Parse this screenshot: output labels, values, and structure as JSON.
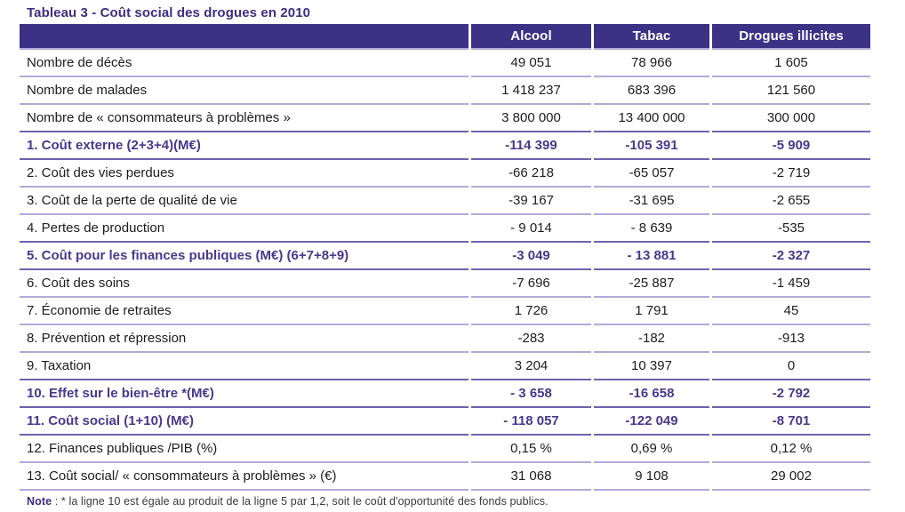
{
  "title": "Tableau 3 - Coût social des drogues en 2010",
  "colors": {
    "header_background": "#3c3184",
    "accent_purple_text": "#463a8e",
    "title_purple": "#3c2f82",
    "separator_light": "#b2aad6",
    "separator_dark": "#6e63ae",
    "body_text": "#1d1d1f",
    "header_text": "#ffffff"
  },
  "table": {
    "columns": [
      "",
      "Alcool",
      "Tabac",
      "Drogues illicites"
    ],
    "rows": [
      {
        "label": "Nombre de décès",
        "values": [
          "49 051",
          "78 966",
          "1 605"
        ],
        "bold": false
      },
      {
        "label": "Nombre de malades",
        "values": [
          "1 418 237",
          "683 396",
          "121 560"
        ],
        "bold": false
      },
      {
        "label": "Nombre de « consommateurs à problèmes »",
        "values": [
          "3 800 000",
          "13 400 000",
          "300 000"
        ],
        "bold": false
      },
      {
        "label": "1. Coût externe (2+3+4)(M€)",
        "values": [
          "-114 399",
          "-105 391",
          "-5 909"
        ],
        "bold": true
      },
      {
        "label": "2. Coût des vies perdues",
        "values": [
          "-66 218",
          "-65 057",
          "-2 719"
        ],
        "bold": false
      },
      {
        "label": "3. Coût de la perte de qualité de vie",
        "values": [
          "-39 167",
          "-31 695",
          "-2 655"
        ],
        "bold": false
      },
      {
        "label": "4. Pertes de production",
        "values": [
          "- 9 014",
          "- 8 639",
          "-535"
        ],
        "bold": false
      },
      {
        "label": "5. Coût pour les finances publiques (M€) (6+7+8+9)",
        "values": [
          "-3 049",
          "- 13 881",
          "-2 327"
        ],
        "bold": true
      },
      {
        "label": "6. Coût des soins",
        "values": [
          "-7 696",
          "-25 887",
          "-1 459"
        ],
        "bold": false
      },
      {
        "label": "7. Économie de retraites",
        "values": [
          "1 726",
          "1 791",
          "45"
        ],
        "bold": false
      },
      {
        "label": "8. Prévention et répression",
        "values": [
          "-283",
          "-182",
          "-913"
        ],
        "bold": false
      },
      {
        "label": "9. Taxation",
        "values": [
          "3 204",
          "10 397",
          "0"
        ],
        "bold": false
      },
      {
        "label": "10. Effet sur le bien-être *(M€)",
        "values": [
          "- 3 658",
          "-16 658",
          "-2 792"
        ],
        "bold": true
      },
      {
        "label": "11. Coût social (1+10) (M€)",
        "values": [
          "- 118 057",
          "-122 049",
          "-8 701"
        ],
        "bold": true
      },
      {
        "label": "12. Finances publiques /PIB (%)",
        "values": [
          "0,15 %",
          "0,69 %",
          "0,12 %"
        ],
        "bold": false
      },
      {
        "label": "13. Coût social/ « consommateurs à problèmes » (€)",
        "values": [
          "31 068",
          "9 108",
          "29 002"
        ],
        "bold": false
      }
    ]
  },
  "note": {
    "label": "Note",
    "text": " : * la ligne 10 est égale au produit de la ligne 5 par 1,2, soit le coût d'opportunité des fonds publics."
  }
}
